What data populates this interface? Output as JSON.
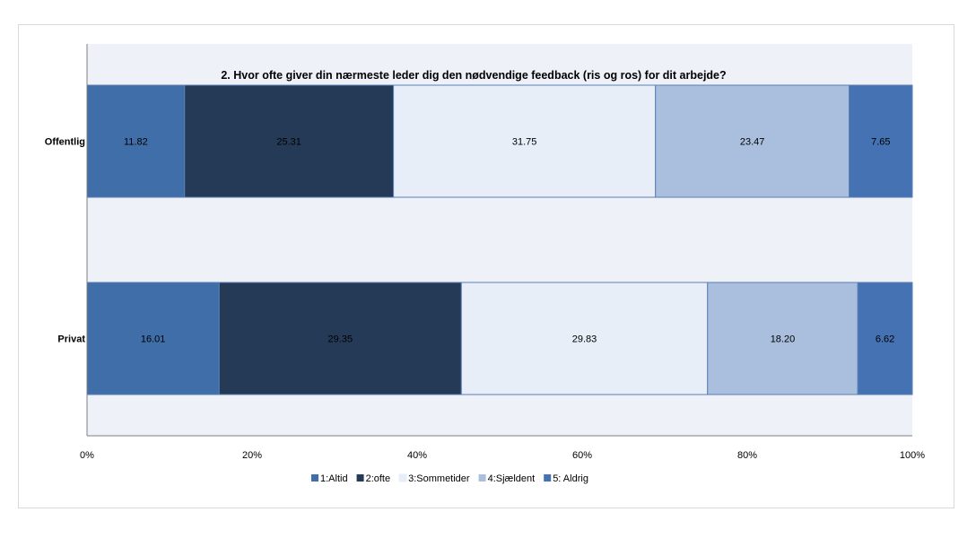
{
  "chart_data": {
    "type": "bar",
    "orientation": "horizontal",
    "stacked": true,
    "percent": true,
    "title": "2. Hvor ofte giver din nærmeste leder dig den nødvendige feedback (ris og ros) for dit arbejde?",
    "categories": [
      "Offentlig",
      "Privat"
    ],
    "series": [
      {
        "name": "1:Altid",
        "values": [
          11.82,
          16.01
        ],
        "labels": [
          "11.82",
          "16.01"
        ],
        "color": "#3f6ea9"
      },
      {
        "name": "2:ofte",
        "values": [
          25.31,
          29.35
        ],
        "labels": [
          "25.31",
          "29.35"
        ],
        "color": "#243a57"
      },
      {
        "name": "3:Sommetider",
        "values": [
          31.75,
          29.83
        ],
        "labels": [
          "31.75",
          "29.83"
        ],
        "color": "#e8eef7"
      },
      {
        "name": "4:Sjældent",
        "values": [
          23.47,
          18.2
        ],
        "labels": [
          "23.47",
          "18.20"
        ],
        "color": "#a9bfdd"
      },
      {
        "name": "5: Aldrig",
        "values": [
          7.65,
          6.62
        ],
        "labels": [
          "7.65",
          "6.62"
        ],
        "color": "#4472b2"
      }
    ],
    "x_ticks": [
      "0%",
      "20%",
      "40%",
      "60%",
      "80%",
      "100%"
    ],
    "xlim": [
      0,
      100
    ],
    "legend_position": "bottom",
    "plot_background": "#eef1f8",
    "grid": false
  }
}
